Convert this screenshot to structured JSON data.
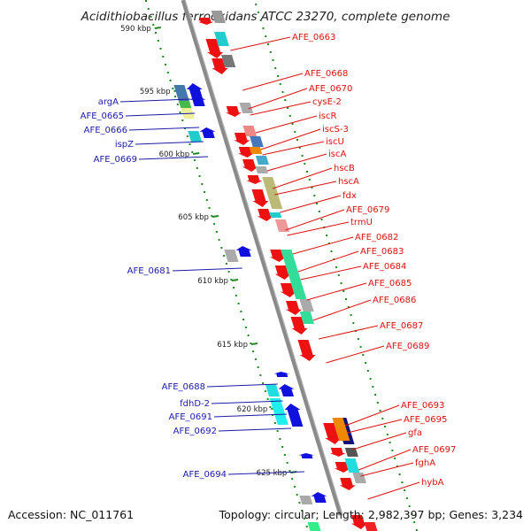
{
  "title": "Acidithiobacillus ferrooxidans ATCC 23270, complete genome",
  "footer": {
    "accession": "Accession: NC_011761",
    "summary": "Topology: circular; Length: 2,982,397 bp; Genes: 3,234"
  },
  "colors": {
    "forward_gene": "#ee1111",
    "reverse_gene": "#1111dd",
    "right_label": "#dd1111",
    "left_label": "#1a1aaa",
    "backbone": "#888888",
    "ticks": "#228822"
  },
  "ticks": [
    {
      "label": "590 kbp",
      "t": 0.0
    },
    {
      "label": "595 kbp",
      "t": 0.1
    },
    {
      "label": "600 kbp",
      "t": 0.2
    },
    {
      "label": "605 kbp",
      "t": 0.3
    },
    {
      "label": "610 kbp",
      "t": 0.4
    },
    {
      "label": "615 kbp",
      "t": 0.5
    },
    {
      "label": "620 kbp",
      "t": 0.6
    },
    {
      "label": "625 kbp",
      "t": 0.7
    }
  ],
  "right_labels": [
    "AFE_0663",
    "AFE_0668",
    "AFE_0670",
    "cysE-2",
    "iscR",
    "iscS-3",
    "iscU",
    "iscA",
    "hscB",
    "hscA",
    "fdx",
    "AFE_0679",
    "trmU",
    "AFE_0682",
    "AFE_0683",
    "AFE_0684",
    "AFE_0685",
    "AFE_0686",
    "AFE_0687",
    "AFE_0689",
    "AFE_0693",
    "AFE_0695",
    "gfa",
    "AFE_0697",
    "fghA",
    "hybA"
  ],
  "left_labels": [
    "argA",
    "AFE_0665",
    "AFE_0666",
    "ispZ",
    "AFE_0669",
    "AFE_0681",
    "AFE_0688",
    "fdhD-2",
    "AFE_0691",
    "AFE_0692",
    "AFE_0694"
  ]
}
